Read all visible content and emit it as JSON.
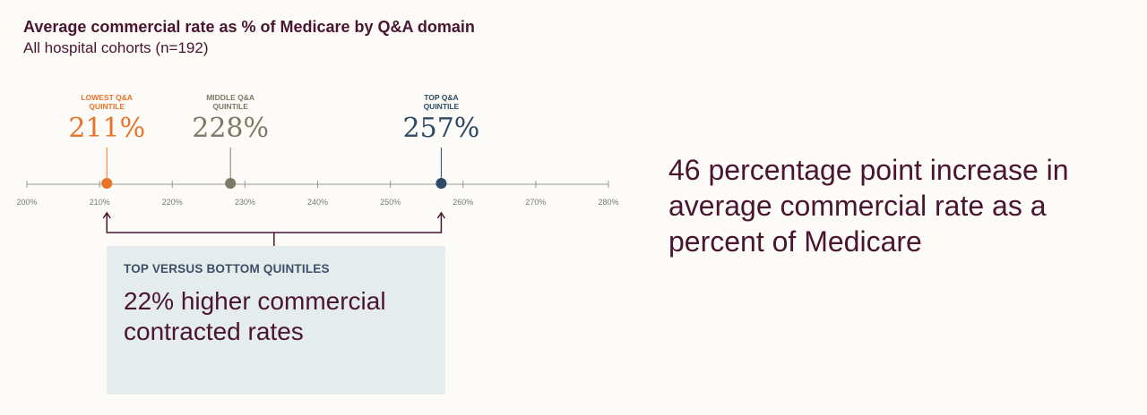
{
  "chart_data": {
    "type": "scatter",
    "title": "Average commercial rate as % of Medicare by Q&A domain",
    "subtitle": "All hospital cohorts (n=192)",
    "xlim": [
      200,
      280
    ],
    "ticks": [
      "200%",
      "210%",
      "220%",
      "230%",
      "240%",
      "250%",
      "260%",
      "270%",
      "280%"
    ],
    "tick_values": [
      200,
      210,
      220,
      230,
      240,
      250,
      260,
      270,
      280
    ],
    "points": [
      {
        "label_lines": [
          "LOWEST Q&A",
          "QUINTILE"
        ],
        "value": 211,
        "display": "211%",
        "color": "#e8732a"
      },
      {
        "label_lines": [
          "MIDDLE Q&A",
          "QUINTILE"
        ],
        "value": 228,
        "display": "228%",
        "color": "#7a7a66"
      },
      {
        "label_lines": [
          "TOP Q&A",
          "QUINTILE"
        ],
        "value": 257,
        "display": "257%",
        "color": "#2e4a66"
      }
    ],
    "bracket_from": 211,
    "bracket_to": 257
  },
  "callout": {
    "heading": "TOP VERSUS BOTTOM QUINTILES",
    "body": "22% higher commercial contracted rates"
  },
  "headline": "46 percentage point increase in average commercial rate as a percent of Medicare",
  "colors": {
    "primary": "#4a1530",
    "axis": "#999999",
    "callout_bg": "#e5ecee"
  }
}
